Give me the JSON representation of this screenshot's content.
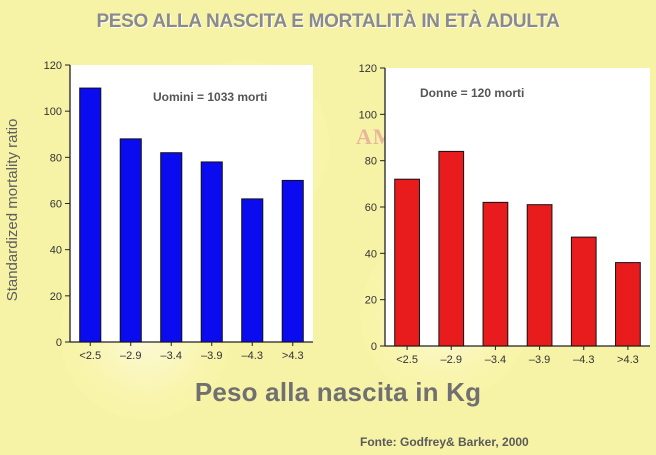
{
  "title": "PESO ALLA NASCITA E MORTALITÀ IN ETÀ ADULTA",
  "ylabel": "Standardized mortality ratio",
  "xlabel": "Peso alla nascita in Kg",
  "source": "Fonte: Godfrey& Barker, 2000",
  "watermark": "AMEC",
  "colors": {
    "men": "#0b0bf0",
    "women": "#e81c1c",
    "background": "#f7f3a6"
  },
  "chart_data": [
    {
      "type": "bar",
      "annotation": "Uomini = 1033 morti",
      "categories": [
        "<2.5",
        "–2.9",
        "–3.4",
        "–3.9",
        "–4.3",
        ">4.3"
      ],
      "values": [
        110,
        88,
        82,
        78,
        62,
        70
      ],
      "yticks": [
        0,
        20,
        40,
        60,
        80,
        100,
        120
      ],
      "ylim": [
        0,
        120
      ],
      "color": "#0b0bf0"
    },
    {
      "type": "bar",
      "annotation": "Donne = 120 morti",
      "categories": [
        "<2.5",
        "–2.9",
        "–3.4",
        "–3.9",
        "–4.3",
        ">4.3"
      ],
      "values": [
        72,
        84,
        62,
        61,
        47,
        36
      ],
      "yticks": [
        0,
        20,
        40,
        60,
        80,
        100,
        120
      ],
      "ylim": [
        0,
        120
      ],
      "color": "#e81c1c"
    }
  ]
}
